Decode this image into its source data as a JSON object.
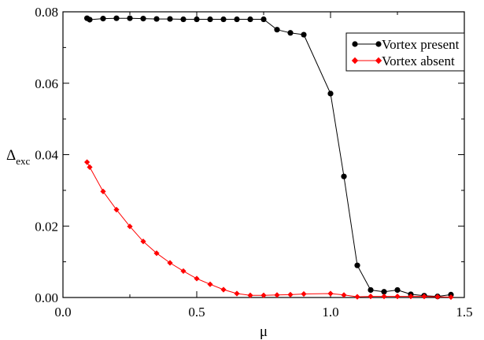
{
  "chart_data": {
    "type": "line",
    "xlabel": "μ",
    "ylabel_main": "Δ",
    "ylabel_sub": "exc",
    "xlim": [
      0.0,
      1.5
    ],
    "ylim": [
      0.0,
      0.08
    ],
    "xticks": [
      0.0,
      0.5,
      1.0,
      1.5
    ],
    "xtick_labels": [
      "0.0",
      "0.5",
      "1.0",
      "1.5"
    ],
    "yticks": [
      0.0,
      0.02,
      0.04,
      0.06,
      0.08
    ],
    "ytick_labels": [
      "0.00",
      "0.02",
      "0.04",
      "0.06",
      "0.08"
    ],
    "grid": false,
    "legend_position": "top-right",
    "series": [
      {
        "name": "Vortex present",
        "color": "#000000",
        "marker": "circle",
        "x": [
          0.09,
          0.1,
          0.15,
          0.2,
          0.25,
          0.3,
          0.35,
          0.4,
          0.45,
          0.5,
          0.55,
          0.6,
          0.65,
          0.7,
          0.75,
          0.8,
          0.85,
          0.9,
          1.0,
          1.05,
          1.1,
          1.15,
          1.2,
          1.25,
          1.3,
          1.35,
          1.4,
          1.45
        ],
        "y": [
          0.0782,
          0.0778,
          0.0781,
          0.0782,
          0.0782,
          0.0781,
          0.078,
          0.078,
          0.0779,
          0.0779,
          0.0779,
          0.0779,
          0.0779,
          0.0779,
          0.0779,
          0.075,
          0.0741,
          0.0736,
          0.0571,
          0.0339,
          0.009,
          0.0021,
          0.0016,
          0.0021,
          0.0009,
          0.0005,
          0.0003,
          0.0008
        ]
      },
      {
        "name": "Vortex absent",
        "color": "#ff0000",
        "marker": "diamond",
        "x": [
          0.09,
          0.1,
          0.15,
          0.2,
          0.25,
          0.3,
          0.35,
          0.4,
          0.45,
          0.5,
          0.55,
          0.6,
          0.65,
          0.7,
          0.75,
          0.8,
          0.85,
          0.9,
          1.0,
          1.05,
          1.1,
          1.15,
          1.2,
          1.25,
          1.3,
          1.35,
          1.4,
          1.45
        ],
        "y": [
          0.0379,
          0.0365,
          0.0297,
          0.0246,
          0.0199,
          0.0157,
          0.0124,
          0.0097,
          0.0074,
          0.0053,
          0.0037,
          0.0022,
          0.0011,
          0.0006,
          0.0006,
          0.0007,
          0.0008,
          0.001,
          0.0011,
          0.0007,
          0.0002,
          0.0003,
          0.0003,
          0.0003,
          0.0003,
          0.0003,
          0.0002,
          0.0001
        ]
      }
    ]
  }
}
